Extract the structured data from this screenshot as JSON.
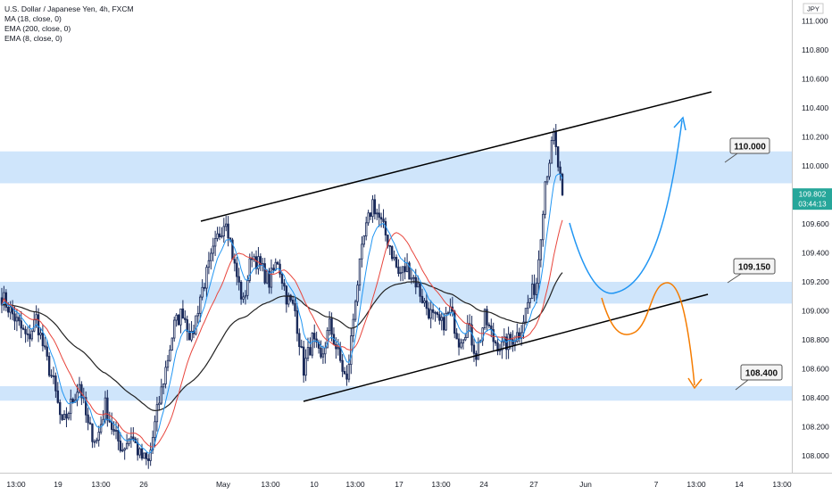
{
  "legend": {
    "title": "U.S. Dollar / Japanese Yen, 4h, FXCM",
    "indicators": [
      "MA (18, close, 0)",
      "EMA (200, close, 0)",
      "EMA (8, close, 0)"
    ]
  },
  "currency_tag": "JPY",
  "colors": {
    "up": "#1a2a5a",
    "down": "#1a2a5a",
    "zone": "#cfe5fb",
    "ma18": "#e8453c",
    "ema200": "#222222",
    "ema8": "#2196f3",
    "arrow_blue": "#2196f3",
    "arrow_orange": "#f57c00",
    "price_tag": "#26a69a"
  },
  "chart_data": {
    "type": "candlestick",
    "symbol": "USDJPY",
    "timeframe": "4h",
    "ylim": [
      107.88,
      111.22
    ],
    "y_ticks": [
      108.0,
      108.2,
      108.4,
      108.6,
      108.8,
      109.0,
      109.2,
      109.4,
      109.6,
      109.8,
      110.0,
      110.2,
      110.4,
      110.6,
      110.8,
      111.0
    ],
    "x_tick_labels": [
      "13:00",
      "19",
      "13:00",
      "26",
      "May",
      "13:00",
      "10",
      "13:00",
      "17",
      "13:00",
      "24",
      "27",
      "Jun",
      "7",
      "13:00",
      "14",
      "13:00"
    ],
    "last_price": "109.802",
    "countdown": "03:44:13",
    "zones": [
      {
        "label": "110.000",
        "low": 109.88,
        "high": 110.1
      },
      {
        "label": "109.150",
        "low": 109.05,
        "high": 109.2
      },
      {
        "label": "108.400",
        "low": 108.38,
        "high": 108.48
      }
    ],
    "close_path": [
      109.1,
      109.0,
      108.9,
      108.8,
      108.95,
      108.7,
      108.5,
      108.2,
      108.35,
      108.5,
      108.2,
      108.1,
      108.35,
      108.15,
      108.05,
      108.15,
      108.0,
      107.95,
      108.3,
      108.6,
      108.9,
      109.0,
      108.8,
      109.1,
      109.3,
      109.5,
      109.65,
      109.3,
      109.05,
      109.4,
      109.3,
      109.2,
      109.35,
      109.1,
      109.0,
      108.6,
      108.8,
      108.65,
      108.9,
      108.7,
      108.5,
      109.1,
      109.5,
      109.75,
      109.6,
      109.45,
      109.25,
      109.3,
      109.2,
      109.05,
      108.95,
      108.9,
      109.0,
      108.8,
      108.9,
      108.7,
      108.95,
      108.8,
      108.75,
      108.8,
      108.85,
      109.05,
      109.2,
      109.9,
      110.2,
      109.8
    ]
  }
}
